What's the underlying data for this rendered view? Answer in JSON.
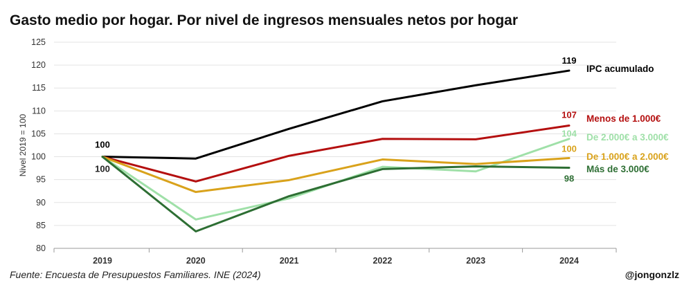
{
  "title": "Gasto medio por hogar. Por nivel de ingresos mensuales netos por hogar",
  "source": "Fuente: Encuesta de Presupuestos Familiares. INE (2024)",
  "credit": "@jongonzlz",
  "chart_data": {
    "type": "line",
    "x": [
      "2019",
      "2020",
      "2021",
      "2022",
      "2023",
      "2024"
    ],
    "ylabel": "Nivel 2019 = 100",
    "ylim": [
      80,
      125
    ],
    "yticks": [
      80,
      85,
      90,
      95,
      100,
      105,
      110,
      115,
      120,
      125
    ],
    "grid": true,
    "legend": "right (labels at line ends)",
    "start_labels": [
      {
        "text": "100",
        "series": 0,
        "position": "above"
      },
      {
        "text": "100",
        "series": 4,
        "position": "below"
      }
    ],
    "series": [
      {
        "name": "IPC acumulado",
        "color": "#000000",
        "values": [
          100,
          99.6,
          106.1,
          112.1,
          115.6,
          118.8
        ],
        "end_label": "119"
      },
      {
        "name": "Menos de 1.000€",
        "color": "#b40f0f",
        "values": [
          100,
          94.6,
          100.2,
          103.9,
          103.8,
          106.8
        ],
        "end_label": "107"
      },
      {
        "name": "De 2.000€ a 3.000€",
        "color": "#9fe0a8",
        "values": [
          100,
          86.3,
          90.9,
          97.8,
          96.8,
          103.9
        ],
        "end_label": "104"
      },
      {
        "name": "De 1.000€ a 2.000€",
        "color": "#d9a21b",
        "values": [
          100,
          92.3,
          94.9,
          99.4,
          98.4,
          99.7
        ],
        "end_label": "100"
      },
      {
        "name": "Más de 3.000€",
        "color": "#2d6e33",
        "values": [
          100,
          83.7,
          91.4,
          97.3,
          97.9,
          97.6
        ],
        "end_label": "98"
      }
    ]
  }
}
